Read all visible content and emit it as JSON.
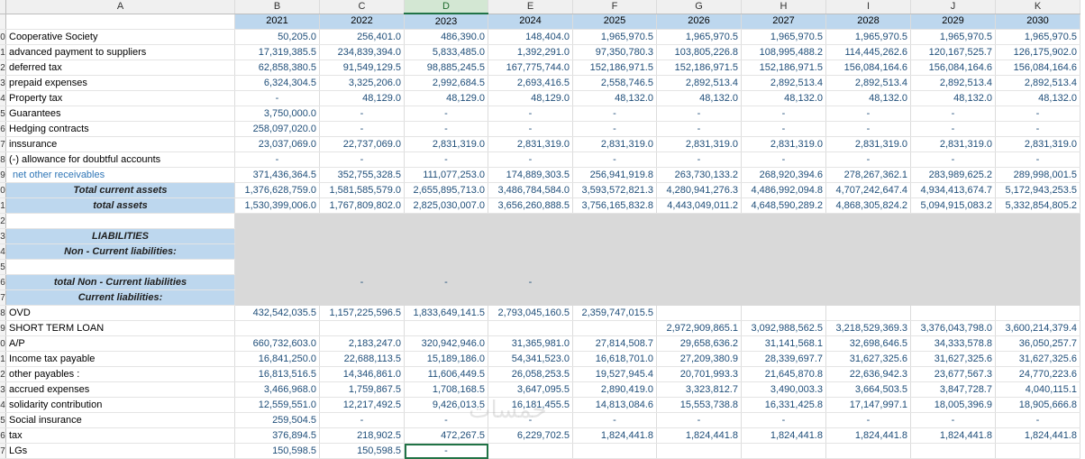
{
  "columns": [
    "A",
    "B",
    "C",
    "D",
    "E",
    "F",
    "G",
    "H",
    "I",
    "J",
    "K"
  ],
  "years": [
    "2021",
    "2022",
    "2023",
    "2024",
    "2025",
    "2026",
    "2027",
    "2028",
    "2029",
    "2030"
  ],
  "rows": [
    {
      "n": "0",
      "label": "Cooperative Society",
      "v": [
        "50,205.0",
        "256,401.0",
        "486,390.0",
        "148,404.0",
        "1,965,970.5",
        "1,965,970.5",
        "1,965,970.5",
        "1,965,970.5",
        "1,965,970.5",
        "1,965,970.5"
      ]
    },
    {
      "n": "1",
      "label": "advanced payment to suppliers",
      "v": [
        "17,319,385.5",
        "234,839,394.0",
        "5,833,485.0",
        "1,392,291.0",
        "97,350,780.3",
        "103,805,226.8",
        "108,995,488.2",
        "114,445,262.6",
        "120,167,525.7",
        "126,175,902.0"
      ]
    },
    {
      "n": "2",
      "label": "deferred tax",
      "v": [
        "62,858,380.5",
        "91,549,129.5",
        "98,885,245.5",
        "167,775,744.0",
        "152,186,971.5",
        "152,186,971.5",
        "152,186,971.5",
        "156,084,164.6",
        "156,084,164.6",
        "156,084,164.6"
      ]
    },
    {
      "n": "3",
      "label": "prepaid expenses",
      "v": [
        "6,324,304.5",
        "3,325,206.0",
        "2,992,684.5",
        "2,693,416.5",
        "2,558,746.5",
        "2,892,513.4",
        "2,892,513.4",
        "2,892,513.4",
        "2,892,513.4",
        "2,892,513.4"
      ]
    },
    {
      "n": "4",
      "label": "Property tax",
      "v": [
        "-",
        "48,129.0",
        "48,129.0",
        "48,129.0",
        "48,132.0",
        "48,132.0",
        "48,132.0",
        "48,132.0",
        "48,132.0",
        "48,132.0"
      ]
    },
    {
      "n": "5",
      "label": "Guarantees",
      "v": [
        "3,750,000.0",
        "-",
        "-",
        "-",
        "-",
        "-",
        "-",
        "-",
        "-",
        "-"
      ]
    },
    {
      "n": "6",
      "label": "Hedging contracts",
      "v": [
        "258,097,020.0",
        "-",
        "-",
        "-",
        "-",
        "-",
        "-",
        "-",
        "-",
        "-"
      ]
    },
    {
      "n": "7",
      "label": "inssurance",
      "v": [
        "23,037,069.0",
        "22,737,069.0",
        "2,831,319.0",
        "2,831,319.0",
        "2,831,319.0",
        "2,831,319.0",
        "2,831,319.0",
        "2,831,319.0",
        "2,831,319.0",
        "2,831,319.0"
      ]
    },
    {
      "n": "8",
      "label": "(-) allowance for doubtful accounts",
      "v": [
        "-",
        "-",
        "-",
        "-",
        "-",
        "-",
        "-",
        "-",
        "-",
        "-"
      ]
    },
    {
      "n": "9",
      "label": "net other receivables",
      "blue": true,
      "v": [
        "371,436,364.5",
        "352,755,328.5",
        "111,077,253.0",
        "174,889,303.5",
        "256,941,919.8",
        "263,730,133.2",
        "268,920,394.6",
        "278,267,362.1",
        "283,989,625.2",
        "289,998,001.5"
      ]
    },
    {
      "n": "0",
      "label": "Total current assets",
      "total": true,
      "v": [
        "1,376,628,759.0",
        "1,581,585,579.0",
        "2,655,895,713.0",
        "3,486,784,584.0",
        "3,593,572,821.3",
        "4,280,941,276.3",
        "4,486,992,094.8",
        "4,707,242,647.4",
        "4,934,413,674.7",
        "5,172,943,253.5"
      ]
    },
    {
      "n": "1",
      "label": "total assets",
      "total": true,
      "v": [
        "1,530,399,006.0",
        "1,767,809,802.0",
        "2,825,030,007.0",
        "3,656,260,888.5",
        "3,756,165,832.8",
        "4,443,049,011.2",
        "4,648,590,289.2",
        "4,868,305,824.2",
        "5,094,915,083.2",
        "5,332,854,805.2"
      ]
    }
  ],
  "section": {
    "blank_row": "2",
    "liabilities": {
      "n": "3",
      "label": "LIABILITIES"
    },
    "noncurrent": {
      "n": "4",
      "label": "Non - Current liabilities:"
    },
    "blank_row2": "5",
    "total_noncurrent": {
      "n": "6",
      "label": "total Non - Current liabilities",
      "v": [
        "",
        "-",
        "-",
        "-",
        "",
        "",
        "",
        "",
        "",
        ""
      ]
    },
    "current": {
      "n": "7",
      "label": "Current liabilities:"
    }
  },
  "rows2": [
    {
      "n": "8",
      "label": "OVD",
      "v": [
        "432,542,035.5",
        "1,157,225,596.5",
        "1,833,649,141.5",
        "2,793,045,160.5",
        "2,359,747,015.5",
        "",
        "",
        "",
        "",
        ""
      ]
    },
    {
      "n": "9",
      "label": "SHORT TERM LOAN",
      "v": [
        "",
        "",
        "",
        "",
        "",
        "2,972,909,865.1",
        "3,092,988,562.5",
        "3,218,529,369.3",
        "3,376,043,798.0",
        "3,600,214,379.4"
      ]
    },
    {
      "n": "0",
      "label": "A/P",
      "v": [
        "660,732,603.0",
        "2,183,247.0",
        "320,942,946.0",
        "31,365,981.0",
        "27,814,508.7",
        "29,658,636.2",
        "31,141,568.1",
        "32,698,646.5",
        "34,333,578.8",
        "36,050,257.7"
      ]
    },
    {
      "n": "1",
      "label": "Income tax payable",
      "v": [
        "16,841,250.0",
        "22,688,113.5",
        "15,189,186.0",
        "54,341,523.0",
        "16,618,701.0",
        "27,209,380.9",
        "28,339,697.7",
        "31,627,325.6",
        "31,627,325.6",
        "31,627,325.6"
      ]
    },
    {
      "n": "2",
      "label": "other payables :",
      "v": [
        "16,813,516.5",
        "14,346,861.0",
        "11,606,449.5",
        "26,058,253.5",
        "19,527,945.4",
        "20,701,993.3",
        "21,645,870.8",
        "22,636,942.3",
        "23,677,567.3",
        "24,770,223.6"
      ]
    },
    {
      "n": "3",
      "label": "accrued expenses",
      "v": [
        "3,466,968.0",
        "1,759,867.5",
        "1,708,168.5",
        "3,647,095.5",
        "2,890,419.0",
        "3,323,812.7",
        "3,490,003.3",
        "3,664,503.5",
        "3,847,728.7",
        "4,040,115.1"
      ]
    },
    {
      "n": "4",
      "label": "solidarity contribution",
      "v": [
        "12,559,551.0",
        "12,217,492.5",
        "9,426,013.5",
        "16,181,455.5",
        "14,813,084.6",
        "15,553,738.8",
        "16,331,425.8",
        "17,147,997.1",
        "18,005,396.9",
        "18,905,666.8"
      ]
    },
    {
      "n": "5",
      "label": "Social insurance",
      "v": [
        "259,504.5",
        "-",
        "-",
        "-",
        "-",
        "-",
        "-",
        "-",
        "-",
        "-"
      ]
    },
    {
      "n": "6",
      "label": "tax",
      "v": [
        "376,894.5",
        "218,902.5",
        "472,267.5",
        "6,229,702.5",
        "1,824,441.8",
        "1,824,441.8",
        "1,824,441.8",
        "1,824,441.8",
        "1,824,441.8",
        "1,824,441.8"
      ]
    },
    {
      "n": "7",
      "label": "LGs",
      "v": [
        "150,598.5",
        "150,598.5",
        "-",
        "",
        "",
        "",
        "",
        "",
        "",
        ""
      ]
    }
  ],
  "watermark": "خمسات",
  "selected_column": "D"
}
